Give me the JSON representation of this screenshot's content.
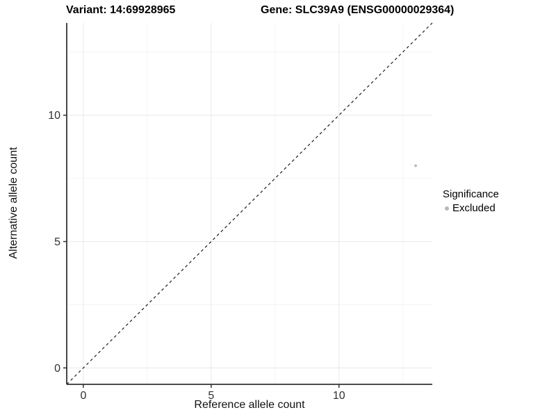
{
  "header": {
    "variant_title": "Variant: 14:69928965",
    "gene_title": "Gene: SLC39A9 (ENSG00000029364)"
  },
  "colors": {
    "background": "#ffffff",
    "grid_major": "#e8e8e8",
    "grid_minor": "#f4f4f4",
    "axis_line": "#333333",
    "tick_mark": "#333333",
    "tick_label": "#303030",
    "axis_title": "#111111",
    "title": "#000000",
    "point": "#b8b8b8",
    "identity_line": "#1a1a1a"
  },
  "chart_data": {
    "type": "scatter",
    "title_left": "Variant: 14:69928965",
    "title_right": "Gene: SLC39A9 (ENSG00000029364)",
    "xlabel": "Reference allele count",
    "ylabel": "Alternative allele count",
    "xlim": [
      -0.65,
      13.65
    ],
    "ylim": [
      -0.65,
      13.65
    ],
    "xticks": [
      0,
      5,
      10
    ],
    "yticks": [
      0,
      5,
      10
    ],
    "x_minor_gridlines": [
      2.5,
      7.5,
      12.5
    ],
    "y_minor_gridlines": [
      2.5,
      7.5,
      12.5
    ],
    "grid": true,
    "reference_line": {
      "type": "identity",
      "style": "dashed",
      "slope": 1,
      "intercept": 0
    },
    "points": [
      {
        "x": 13,
        "y": 8,
        "series": "Excluded"
      }
    ],
    "legend": {
      "title": "Significance",
      "position": "right",
      "entries": [
        {
          "label": "Excluded",
          "color": "#b8b8b8"
        }
      ]
    }
  }
}
